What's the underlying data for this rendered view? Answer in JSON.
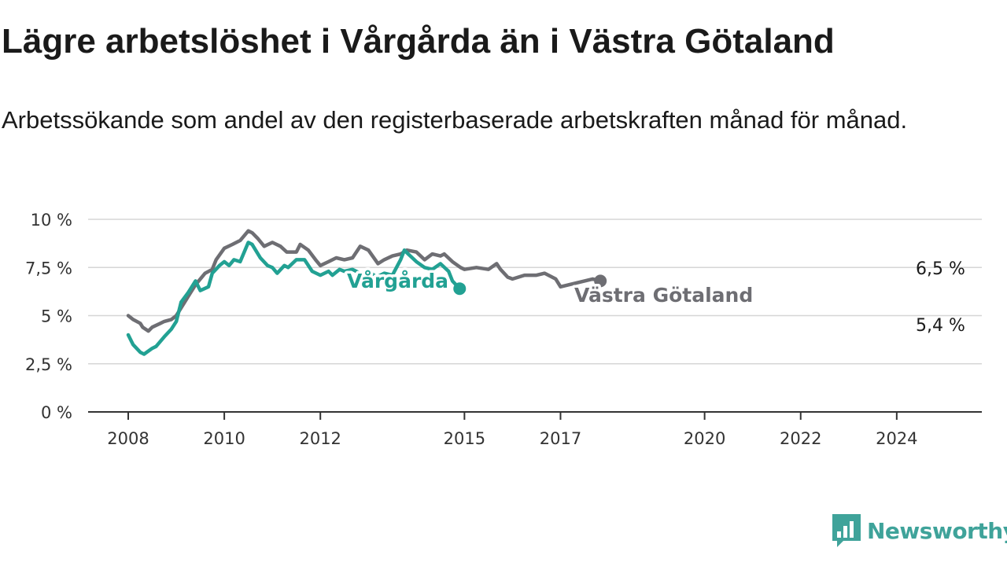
{
  "header": {
    "title": "Lägre arbetslöshet i Vårgårda än i Västra Götaland",
    "subtitle": "Arbetssökande som andel av den registerbaserade arbetskraften månad för månad."
  },
  "brand": {
    "name": "Newsworthy",
    "icon": "newsworthy-logo-icon",
    "color": "#3fa39a"
  },
  "chart_data": {
    "type": "line",
    "x_range": [
      2008.0,
      2024.92
    ],
    "ylim": [
      0,
      10
    ],
    "grid": true,
    "y_ticks": [
      {
        "value": 0,
        "label": "0 %"
      },
      {
        "value": 2.5,
        "label": "2,5 %"
      },
      {
        "value": 5,
        "label": "5 %"
      },
      {
        "value": 7.5,
        "label": "7,5 %"
      },
      {
        "value": 10,
        "label": "10 %"
      }
    ],
    "x_ticks": [
      {
        "value": 2008,
        "label": "2008"
      },
      {
        "value": 2010,
        "label": "2010"
      },
      {
        "value": 2012,
        "label": "2012"
      },
      {
        "value": 2015,
        "label": "2015"
      },
      {
        "value": 2017,
        "label": "2017"
      },
      {
        "value": 2020,
        "label": "2020"
      },
      {
        "value": 2022,
        "label": "2022"
      },
      {
        "value": 2024,
        "label": "2024"
      }
    ],
    "series": [
      {
        "name": "Västra Götaland",
        "color": "#6e6e73",
        "end_label": "6,5 %",
        "points": [
          [
            2008.0,
            5.0
          ],
          [
            2008.1,
            4.8
          ],
          [
            2008.25,
            4.6
          ],
          [
            2008.3,
            4.4
          ],
          [
            2008.42,
            4.2
          ],
          [
            2008.5,
            4.4
          ],
          [
            2008.67,
            4.6
          ],
          [
            2008.75,
            4.7
          ],
          [
            2008.9,
            4.8
          ],
          [
            2009.0,
            5.0
          ],
          [
            2009.1,
            5.4
          ],
          [
            2009.25,
            6.0
          ],
          [
            2009.4,
            6.6
          ],
          [
            2009.5,
            6.9
          ],
          [
            2009.6,
            7.2
          ],
          [
            2009.75,
            7.4
          ],
          [
            2009.83,
            7.9
          ],
          [
            2010.0,
            8.5
          ],
          [
            2010.17,
            8.7
          ],
          [
            2010.33,
            8.9
          ],
          [
            2010.5,
            9.4
          ],
          [
            2010.58,
            9.3
          ],
          [
            2010.7,
            9.0
          ],
          [
            2010.83,
            8.6
          ],
          [
            2011.0,
            8.8
          ],
          [
            2011.17,
            8.6
          ],
          [
            2011.3,
            8.3
          ],
          [
            2011.5,
            8.3
          ],
          [
            2011.58,
            8.7
          ],
          [
            2011.75,
            8.4
          ],
          [
            2011.9,
            7.9
          ],
          [
            2012.0,
            7.6
          ],
          [
            2012.17,
            7.8
          ],
          [
            2012.33,
            8.0
          ],
          [
            2012.5,
            7.9
          ],
          [
            2012.67,
            8.0
          ],
          [
            2012.83,
            8.6
          ],
          [
            2013.0,
            8.4
          ],
          [
            2013.2,
            7.7
          ],
          [
            2013.33,
            7.9
          ],
          [
            2013.5,
            8.1
          ],
          [
            2013.67,
            8.2
          ],
          [
            2013.8,
            8.4
          ],
          [
            2014.0,
            8.3
          ],
          [
            2014.17,
            7.9
          ],
          [
            2014.33,
            8.2
          ],
          [
            2014.5,
            8.1
          ],
          [
            2014.58,
            8.2
          ],
          [
            2014.75,
            7.8
          ],
          [
            2014.92,
            7.5
          ],
          [
            2015.0,
            7.4
          ],
          [
            2015.25,
            7.5
          ],
          [
            2015.5,
            7.4
          ],
          [
            2015.67,
            7.7
          ],
          [
            2015.75,
            7.4
          ],
          [
            2015.9,
            7.0
          ],
          [
            2016.0,
            6.9
          ],
          [
            2016.25,
            7.1
          ],
          [
            2016.5,
            7.1
          ],
          [
            2016.67,
            7.2
          ],
          [
            2016.75,
            7.1
          ],
          [
            2016.9,
            6.9
          ],
          [
            2017.0,
            6.5
          ],
          [
            2017.17,
            6.6
          ],
          [
            2017.33,
            6.7
          ],
          [
            2017.5,
            6.8
          ],
          [
            2017.67,
            6.9
          ],
          [
            2017.83,
            6.8
          ]
        ]
      },
      {
        "name": "Vårgårda",
        "color": "#22a193",
        "end_label": "5,4 %",
        "points": [
          [
            2008.0,
            4.0
          ],
          [
            2008.1,
            3.5
          ],
          [
            2008.25,
            3.1
          ],
          [
            2008.33,
            3.0
          ],
          [
            2008.5,
            3.3
          ],
          [
            2008.58,
            3.4
          ],
          [
            2008.75,
            3.9
          ],
          [
            2008.9,
            4.3
          ],
          [
            2009.0,
            4.7
          ],
          [
            2009.1,
            5.7
          ],
          [
            2009.25,
            6.2
          ],
          [
            2009.4,
            6.8
          ],
          [
            2009.5,
            6.3
          ],
          [
            2009.67,
            6.5
          ],
          [
            2009.75,
            7.2
          ],
          [
            2009.9,
            7.6
          ],
          [
            2010.0,
            7.8
          ],
          [
            2010.1,
            7.6
          ],
          [
            2010.2,
            7.9
          ],
          [
            2010.33,
            7.8
          ],
          [
            2010.5,
            8.8
          ],
          [
            2010.58,
            8.7
          ],
          [
            2010.75,
            8.0
          ],
          [
            2010.9,
            7.6
          ],
          [
            2011.0,
            7.5
          ],
          [
            2011.1,
            7.2
          ],
          [
            2011.25,
            7.6
          ],
          [
            2011.33,
            7.5
          ],
          [
            2011.5,
            7.9
          ],
          [
            2011.67,
            7.9
          ],
          [
            2011.83,
            7.3
          ],
          [
            2012.0,
            7.1
          ],
          [
            2012.17,
            7.3
          ],
          [
            2012.25,
            7.1
          ],
          [
            2012.4,
            7.4
          ],
          [
            2012.5,
            7.3
          ],
          [
            2012.67,
            7.4
          ],
          [
            2012.83,
            7.2
          ],
          [
            2013.0,
            7.3
          ],
          [
            2013.17,
            7.0
          ],
          [
            2013.33,
            7.2
          ],
          [
            2013.5,
            7.1
          ],
          [
            2013.67,
            7.9
          ],
          [
            2013.75,
            8.4
          ],
          [
            2013.83,
            8.2
          ],
          [
            2014.0,
            7.8
          ],
          [
            2014.17,
            7.5
          ],
          [
            2014.33,
            7.4
          ],
          [
            2014.5,
            7.7
          ],
          [
            2014.67,
            7.3
          ],
          [
            2014.75,
            6.8
          ],
          [
            2014.9,
            6.4
          ]
        ]
      }
    ]
  }
}
